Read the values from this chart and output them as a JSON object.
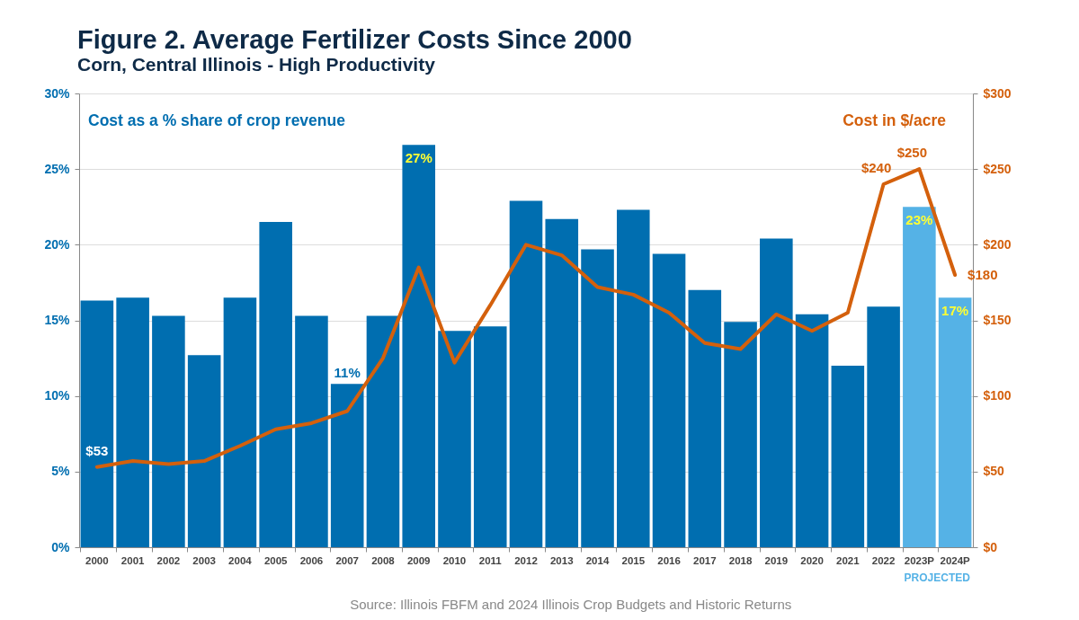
{
  "chart_data": {
    "type": "bar",
    "title": "Figure 2. Average Fertilizer Costs Since 2000",
    "subtitle": "Corn, Central Illinois - High Productivity",
    "categories": [
      "2000",
      "2001",
      "2002",
      "2003",
      "2004",
      "2005",
      "2006",
      "2007",
      "2008",
      "2009",
      "2010",
      "2011",
      "2012",
      "2013",
      "2014",
      "2015",
      "2016",
      "2017",
      "2018",
      "2019",
      "2020",
      "2021",
      "2022",
      "2023P",
      "2024P"
    ],
    "series": [
      {
        "name": "Cost as a % share of crop revenue",
        "type": "bar",
        "colors": [
          "#006eb0",
          "#006eb0",
          "#006eb0",
          "#006eb0",
          "#006eb0",
          "#006eb0",
          "#006eb0",
          "#006eb0",
          "#006eb0",
          "#006eb0",
          "#006eb0",
          "#006eb0",
          "#006eb0",
          "#006eb0",
          "#006eb0",
          "#006eb0",
          "#006eb0",
          "#006eb0",
          "#006eb0",
          "#006eb0",
          "#006eb0",
          "#006eb0",
          "#006eb0",
          "#55b2e6",
          "#55b2e6"
        ],
        "values": [
          16.3,
          16.5,
          15.3,
          12.7,
          16.5,
          21.5,
          15.3,
          10.8,
          15.3,
          26.6,
          14.3,
          14.6,
          22.9,
          21.7,
          19.7,
          22.3,
          19.4,
          17.0,
          14.9,
          20.4,
          15.4,
          12.0,
          15.9,
          22.5,
          16.5
        ],
        "value_labels": [
          null,
          null,
          null,
          null,
          null,
          null,
          null,
          "11%",
          null,
          "27%",
          null,
          null,
          null,
          null,
          null,
          null,
          null,
          null,
          null,
          null,
          null,
          null,
          null,
          "23%",
          "17%"
        ]
      },
      {
        "name": "Cost in $/acre",
        "type": "line",
        "axis": "y2",
        "color": "#d4600c",
        "values": [
          53,
          57,
          55,
          57,
          67,
          78,
          82,
          90,
          125,
          185,
          122,
          160,
          200,
          193,
          172,
          167,
          155,
          135,
          131,
          154,
          143,
          155,
          240,
          250,
          180
        ],
        "value_labels": [
          "$53",
          null,
          null,
          null,
          null,
          null,
          null,
          null,
          null,
          null,
          null,
          null,
          null,
          null,
          null,
          null,
          null,
          null,
          null,
          null,
          null,
          null,
          "$240",
          "$250",
          "$180"
        ]
      }
    ],
    "ylim": [
      0,
      30
    ],
    "yticks": [
      {
        "value": 0,
        "label": "0%"
      },
      {
        "value": 5,
        "label": "5%"
      },
      {
        "value": 10,
        "label": "10%"
      },
      {
        "value": 15,
        "label": "15%"
      },
      {
        "value": 20,
        "label": "20%"
      },
      {
        "value": 25,
        "label": "25%"
      },
      {
        "value": 30,
        "label": "30%"
      }
    ],
    "y2lim": [
      0,
      300
    ],
    "y2ticks": [
      {
        "value": 0,
        "label": "$0"
      },
      {
        "value": 50,
        "label": "$50"
      },
      {
        "value": 100,
        "label": "$100"
      },
      {
        "value": 150,
        "label": "$150"
      },
      {
        "value": 200,
        "label": "$200"
      },
      {
        "value": 250,
        "label": "$250"
      },
      {
        "value": 300,
        "label": "$300"
      }
    ],
    "grid": "y",
    "legend": false,
    "annotations": [
      "PROJECTED",
      "Source: Illinois FBFM and 2024 Illinois Crop Budgets and Historic Returns"
    ]
  }
}
